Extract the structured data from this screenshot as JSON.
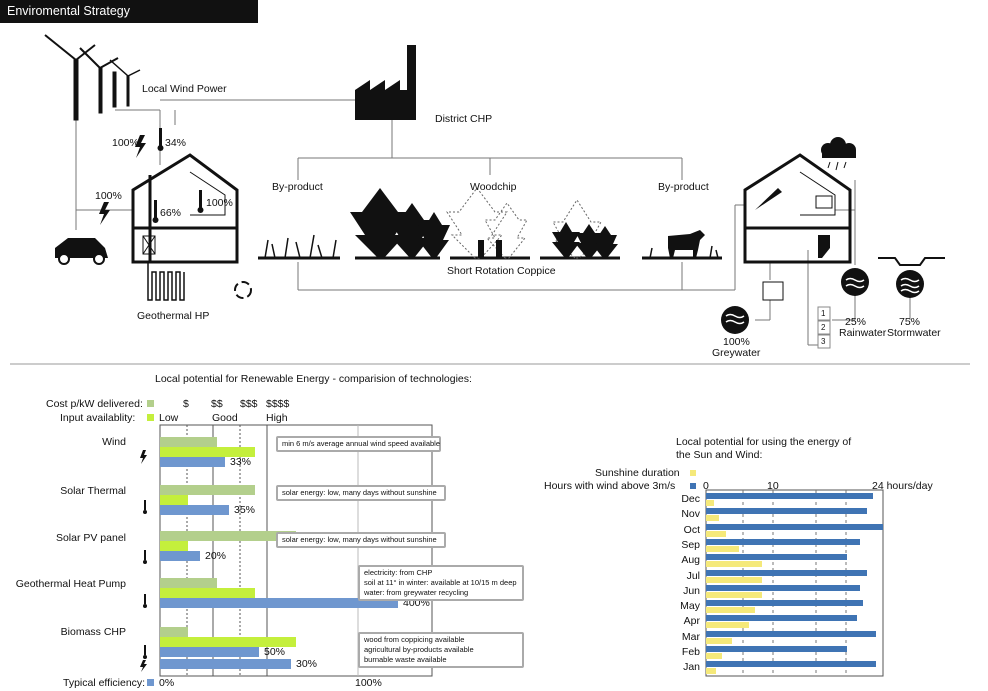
{
  "title": "Enviromental Strategy",
  "diagram": {
    "wind_label": "Local Wind Power",
    "pct_100_left": "100%",
    "pct_34": "34%",
    "pct_100_car": "100%",
    "pct_66": "66%",
    "pct_100_house": "100%",
    "chp_label": "District CHP",
    "byproduct_left": "By-product",
    "woodchip": "Woodchip",
    "byproduct_right": "By-product",
    "src_label": "Short Rotation Coppice",
    "geo_label": "Geothermal HP",
    "grey_pct": "100%",
    "grey_label": "Greywater",
    "rain_pct": "25%",
    "rain_label": "Rainwater",
    "storm_pct": "75%",
    "storm_label": "Stormwater",
    "tank_1": "1",
    "tank_2": "2",
    "tank_3": "3"
  },
  "renewables": {
    "heading": "Local potential for Renewable Energy - comparision of technologies:",
    "cost_label": "Cost p/kW delivered:",
    "input_label": "Input availablity:",
    "eff_label": "Typical efficiency:",
    "scale_cost": [
      "$",
      "$$",
      "$$$",
      "$$$$"
    ],
    "scale_input": [
      "Low",
      "Good",
      "High"
    ],
    "axis_0": "0%",
    "axis_100": "100%",
    "rows": [
      {
        "name": "Wind",
        "cost": 0.27,
        "input": 0.45,
        "eff": "33%",
        "eff_value": 0.33,
        "note": [
          "min 6 m/s average annual wind speed available"
        ]
      },
      {
        "name": "Solar Thermal",
        "cost": 0.45,
        "input": 0.13,
        "eff": "35%",
        "eff_value": 0.35,
        "note": [
          "solar energy: low, many days without sunshine"
        ]
      },
      {
        "name": "Solar PV panel",
        "cost": 0.64,
        "input": 0.13,
        "eff": "20%",
        "eff_value": 0.2,
        "note": [
          "solar energy: low, many days without sunshine"
        ]
      },
      {
        "name": "Geothermal Heat Pump",
        "cost": 0.27,
        "input": 0.45,
        "eff": "400%",
        "eff_value": 4.0,
        "note": [
          "electricity: from CHP",
          "soil at 11° in winter: available at 10/15 m deep",
          "water: from greywater recycling"
        ]
      },
      {
        "name": "Biomass CHP",
        "cost": 0.13,
        "input": 0.64,
        "eff": "50%",
        "eff_value": 0.5,
        "eff2": "30%",
        "eff2_value": 0.3,
        "note": [
          "wood from coppicing available",
          "agricultural by-products available",
          "burnable waste available"
        ]
      }
    ]
  },
  "sun_wind": {
    "heading_1": "Local potential for using the energy of",
    "heading_2": "the Sun and Wind:",
    "legend_sun": "Sunshine duration",
    "legend_wind": "Hours with wind above 3m/s",
    "axis_labels": [
      "0",
      "10",
      "24  hours/day"
    ]
  },
  "chart_data": {
    "type": "bar",
    "categories": [
      "Dec",
      "Nov",
      "Oct",
      "Sep",
      "Aug",
      "Jul",
      "Jun",
      "May",
      "Apr",
      "Mar",
      "Feb",
      "Jan"
    ],
    "series": [
      {
        "name": "Sunshine duration",
        "values": [
          1.2,
          2,
          3,
          5,
          8.5,
          8.5,
          8.5,
          7.5,
          6.5,
          4,
          2.5,
          1.5
        ]
      },
      {
        "name": "Hours with wind above 3m/s",
        "values": [
          25.5,
          24.5,
          27,
          23.5,
          21.5,
          24.5,
          23.5,
          24,
          23,
          26,
          21.5,
          26
        ]
      }
    ],
    "xlabel": "hours/day",
    "xlim": [
      0,
      27
    ]
  },
  "colors": {
    "cost": "#b3cf8c",
    "input": "#c4ef3c",
    "efficiency": "#6f97cf",
    "sunshine": "#f5e97a",
    "wind": "#3f74b4"
  }
}
